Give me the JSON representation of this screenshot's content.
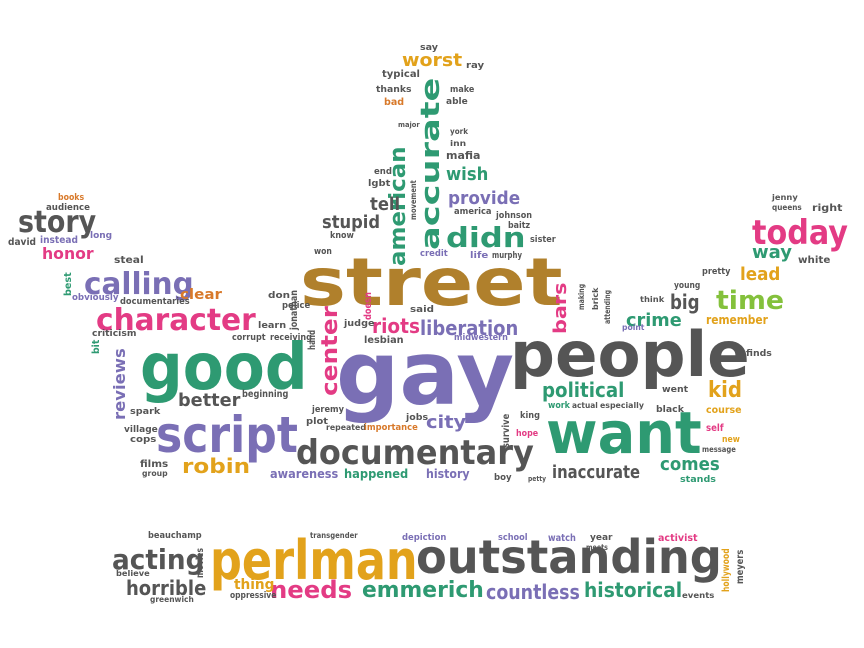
{
  "palette": {
    "gray": "#555555",
    "purple": "#7a6fb5",
    "green": "#2e9a72",
    "pink": "#e33b84",
    "gold": "#e2a21b",
    "brown": "#b0802c",
    "lightgreen": "#84c13c",
    "orange": "#d8792a"
  },
  "words": [
    {
      "text": "gay",
      "color": "purple"
    },
    {
      "text": "street",
      "color": "brown"
    },
    {
      "text": "people",
      "color": "gray"
    },
    {
      "text": "good",
      "color": "green"
    },
    {
      "text": "want",
      "color": "green"
    },
    {
      "text": "script",
      "color": "purple"
    },
    {
      "text": "documentary",
      "color": "gray"
    },
    {
      "text": "perlman",
      "color": "gold"
    },
    {
      "text": "outstanding",
      "color": "gray"
    },
    {
      "text": "character",
      "color": "pink"
    },
    {
      "text": "accurate",
      "color": "green"
    },
    {
      "text": "didn",
      "color": "green"
    },
    {
      "text": "today",
      "color": "pink"
    },
    {
      "text": "time",
      "color": "lightgreen"
    },
    {
      "text": "story",
      "color": "gray"
    },
    {
      "text": "calling",
      "color": "purple"
    },
    {
      "text": "american",
      "color": "green"
    },
    {
      "text": "center",
      "color": "pink"
    },
    {
      "text": "riots",
      "color": "pink"
    },
    {
      "text": "liberation",
      "color": "purple"
    },
    {
      "text": "emmerich",
      "color": "green"
    },
    {
      "text": "needs",
      "color": "pink"
    },
    {
      "text": "acting",
      "color": "gray"
    },
    {
      "text": "historical",
      "color": "green"
    },
    {
      "text": "countless",
      "color": "purple"
    },
    {
      "text": "horrible",
      "color": "gray"
    },
    {
      "text": "robin",
      "color": "gold"
    },
    {
      "text": "political",
      "color": "green"
    },
    {
      "text": "inaccurate",
      "color": "gray"
    },
    {
      "text": "kid",
      "color": "gold"
    },
    {
      "text": "bars",
      "color": "pink"
    },
    {
      "text": "crime",
      "color": "green"
    },
    {
      "text": "big",
      "color": "gray"
    },
    {
      "text": "lead",
      "color": "gold"
    },
    {
      "text": "way",
      "color": "green"
    },
    {
      "text": "city",
      "color": "purple"
    },
    {
      "text": "better",
      "color": "gray"
    },
    {
      "text": "reviews",
      "color": "purple"
    },
    {
      "text": "comes",
      "color": "green"
    },
    {
      "text": "provide",
      "color": "purple"
    },
    {
      "text": "wish",
      "color": "green"
    },
    {
      "text": "tell",
      "color": "gray"
    },
    {
      "text": "stupid",
      "color": "gray"
    },
    {
      "text": "worst",
      "color": "gold"
    },
    {
      "text": "honor",
      "color": "pink"
    },
    {
      "text": "remember",
      "color": "gold"
    },
    {
      "text": "awareness",
      "color": "purple"
    },
    {
      "text": "happened",
      "color": "green"
    },
    {
      "text": "history",
      "color": "purple"
    },
    {
      "text": "clear",
      "color": "orange"
    },
    {
      "text": "thing",
      "color": "gold"
    },
    {
      "text": "steal",
      "color": "gray"
    },
    {
      "text": "david",
      "color": "gray"
    },
    {
      "text": "instead",
      "color": "purple"
    },
    {
      "text": "audience",
      "color": "gray"
    },
    {
      "text": "books",
      "color": "orange"
    },
    {
      "text": "long",
      "color": "purple"
    },
    {
      "text": "best",
      "color": "green"
    },
    {
      "text": "obviously",
      "color": "purple"
    },
    {
      "text": "documentaries",
      "color": "gray"
    },
    {
      "text": "criticism",
      "color": "gray"
    },
    {
      "text": "bit",
      "color": "green"
    },
    {
      "text": "learn",
      "color": "gray"
    },
    {
      "text": "corrupt",
      "color": "gray"
    },
    {
      "text": "receiving",
      "color": "gray"
    },
    {
      "text": "don",
      "color": "gray"
    },
    {
      "text": "police",
      "color": "gray"
    },
    {
      "text": "jonathan",
      "color": "gray"
    },
    {
      "text": "judge",
      "color": "gray"
    },
    {
      "text": "doesn",
      "color": "pink"
    },
    {
      "text": "lesbian",
      "color": "gray"
    },
    {
      "text": "hand",
      "color": "gray"
    },
    {
      "text": "said",
      "color": "gray"
    },
    {
      "text": "midwestern",
      "color": "purple"
    },
    {
      "text": "beginning",
      "color": "gray"
    },
    {
      "text": "jeremy",
      "color": "gray"
    },
    {
      "text": "plot",
      "color": "gray"
    },
    {
      "text": "repeated",
      "color": "gray"
    },
    {
      "text": "importance",
      "color": "orange"
    },
    {
      "text": "jobs",
      "color": "gray"
    },
    {
      "text": "hope",
      "color": "pink"
    },
    {
      "text": "king",
      "color": "gray"
    },
    {
      "text": "survive",
      "color": "gray"
    },
    {
      "text": "work",
      "color": "green"
    },
    {
      "text": "actual",
      "color": "gray"
    },
    {
      "text": "especially",
      "color": "gray"
    },
    {
      "text": "black",
      "color": "gray"
    },
    {
      "text": "went",
      "color": "gray"
    },
    {
      "text": "course",
      "color": "gold"
    },
    {
      "text": "self",
      "color": "pink"
    },
    {
      "text": "new",
      "color": "gold"
    },
    {
      "text": "message",
      "color": "gray"
    },
    {
      "text": "stands",
      "color": "green"
    },
    {
      "text": "finds",
      "color": "gray"
    },
    {
      "text": "boy",
      "color": "gray"
    },
    {
      "text": "petty",
      "color": "gray"
    },
    {
      "text": "spark",
      "color": "gray"
    },
    {
      "text": "village",
      "color": "gray"
    },
    {
      "text": "cops",
      "color": "gray"
    },
    {
      "text": "films",
      "color": "gray"
    },
    {
      "text": "group",
      "color": "gray"
    },
    {
      "text": "know",
      "color": "gray"
    },
    {
      "text": "won",
      "color": "gray"
    },
    {
      "text": "credit",
      "color": "purple"
    },
    {
      "text": "life",
      "color": "purple"
    },
    {
      "text": "murphy",
      "color": "gray"
    },
    {
      "text": "johnson",
      "color": "gray"
    },
    {
      "text": "baitz",
      "color": "gray"
    },
    {
      "text": "sister",
      "color": "gray"
    },
    {
      "text": "america",
      "color": "gray"
    },
    {
      "text": "mafia",
      "color": "gray"
    },
    {
      "text": "inn",
      "color": "gray"
    },
    {
      "text": "york",
      "color": "gray"
    },
    {
      "text": "major",
      "color": "gray"
    },
    {
      "text": "end",
      "color": "gray"
    },
    {
      "text": "lgbt",
      "color": "gray"
    },
    {
      "text": "movement",
      "color": "gray"
    },
    {
      "text": "thanks",
      "color": "gray"
    },
    {
      "text": "bad",
      "color": "orange"
    },
    {
      "text": "able",
      "color": "gray"
    },
    {
      "text": "make",
      "color": "gray"
    },
    {
      "text": "typical",
      "color": "gray"
    },
    {
      "text": "ray",
      "color": "gray"
    },
    {
      "text": "say",
      "color": "gray"
    },
    {
      "text": "making",
      "color": "gray"
    },
    {
      "text": "brick",
      "color": "gray"
    },
    {
      "text": "attending",
      "color": "gray"
    },
    {
      "text": "think",
      "color": "gray"
    },
    {
      "text": "point",
      "color": "purple"
    },
    {
      "text": "young",
      "color": "gray"
    },
    {
      "text": "pretty",
      "color": "gray"
    },
    {
      "text": "jenny",
      "color": "gray"
    },
    {
      "text": "queens",
      "color": "gray"
    },
    {
      "text": "right",
      "color": "gray"
    },
    {
      "text": "white",
      "color": "gray"
    },
    {
      "text": "beauchamp",
      "color": "gray"
    },
    {
      "text": "believe",
      "color": "gray"
    },
    {
      "text": "greenwich",
      "color": "gray"
    },
    {
      "text": "movies",
      "color": "gray"
    },
    {
      "text": "transgender",
      "color": "gray"
    },
    {
      "text": "oppressive",
      "color": "gray"
    },
    {
      "text": "depiction",
      "color": "purple"
    },
    {
      "text": "school",
      "color": "purple"
    },
    {
      "text": "watch",
      "color": "purple"
    },
    {
      "text": "year",
      "color": "gray"
    },
    {
      "text": "meets",
      "color": "gray"
    },
    {
      "text": "activist",
      "color": "pink"
    },
    {
      "text": "events",
      "color": "gray"
    },
    {
      "text": "hollywood",
      "color": "gold"
    },
    {
      "text": "meyers",
      "color": "gray"
    }
  ]
}
